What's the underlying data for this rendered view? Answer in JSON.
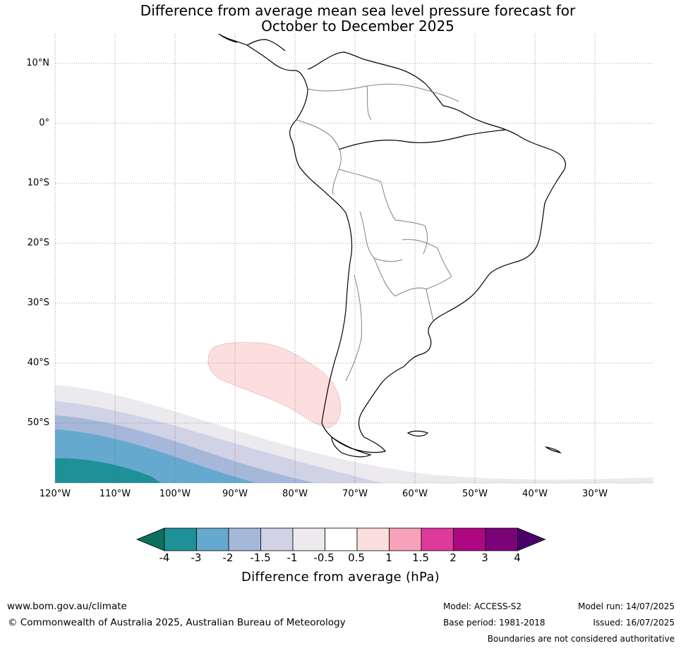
{
  "title": {
    "line1": "Difference from average mean sea level pressure forecast for",
    "line2": "October to December 2025"
  },
  "map": {
    "latitude_labels": [
      "10°N",
      "0°",
      "10°S",
      "20°S",
      "30°S",
      "40°S",
      "50°S"
    ],
    "longitude_labels": [
      "120°W",
      "110°W",
      "100°W",
      "90°W",
      "80°W",
      "70°W",
      "60°W",
      "50°W",
      "40°W",
      "30°W"
    ],
    "colors": {
      "neg4": "#1e9098",
      "neg3": "#66a9ce",
      "neg2": "#a5b8d9",
      "neg15": "#d1d2e6",
      "neg1": "#ece9ef",
      "pos05": "#fddede",
      "coast": "#000000",
      "borders": "#808080",
      "grid": "#555555"
    }
  },
  "colorbar": {
    "ticks": [
      "-4",
      "-3",
      "-2",
      "-1.5",
      "-1",
      "-0.5",
      "0.5",
      "1",
      "1.5",
      "2",
      "3",
      "4"
    ],
    "colors": [
      "#0e6f5f",
      "#1e9098",
      "#66a9ce",
      "#a5b8d9",
      "#d1d2e6",
      "#ece9ef",
      "#ffffff",
      "#fddede",
      "#f8a1ba",
      "#de3a9b",
      "#ad0782",
      "#7b0377",
      "#4a006a"
    ],
    "label": "Difference from average (hPa)"
  },
  "footer": {
    "url": "www.bom.gov.au/climate",
    "copyright": "© Commonwealth of Australia 2025, Australian Bureau of Meteorology",
    "model": "Model: ACCESS-S2",
    "base_period": "Base period: 1981-2018",
    "model_run": "Model run: 14/07/2025",
    "issued": "Issued: 16/07/2025",
    "disclaimer": "Boundaries are not considered authoritative"
  }
}
